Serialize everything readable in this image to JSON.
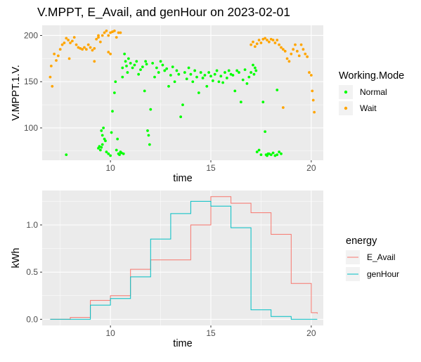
{
  "chart_data": [
    {
      "type": "scatter",
      "title": "V.MPPT, E_Avail, and genHour on 2023-02-01",
      "xlabel": "time",
      "ylabel": "V.MPPT.1.V.",
      "xlim": [
        6.6,
        20.6
      ],
      "ylim": [
        65,
        211
      ],
      "xticks": [
        10,
        15,
        20
      ],
      "yticks": [
        100,
        150,
        200
      ],
      "grid": true,
      "legend": {
        "title": "Working.Mode",
        "position": "right",
        "entries": [
          {
            "label": "Normal",
            "color": "#00ff00"
          },
          {
            "label": "Wait",
            "color": "#ffa500"
          }
        ]
      },
      "series": [
        {
          "name": "Normal",
          "color": "#00ff00",
          "points": [
            [
              7.8,
              71
            ],
            [
              9.4,
              78
            ],
            [
              9.45,
              80
            ],
            [
              9.5,
              76
            ],
            [
              9.55,
              79
            ],
            [
              9.6,
              82
            ],
            [
              9.55,
              97
            ],
            [
              9.65,
              100
            ],
            [
              9.6,
              92
            ],
            [
              9.7,
              88
            ],
            [
              9.75,
              86
            ],
            [
              9.8,
              74
            ],
            [
              9.9,
              72
            ],
            [
              10.0,
              70
            ],
            [
              10.05,
              95
            ],
            [
              10.1,
              118
            ],
            [
              10.2,
              138
            ],
            [
              10.25,
              150
            ],
            [
              10.3,
              76
            ],
            [
              10.35,
              88
            ],
            [
              10.4,
              72
            ],
            [
              10.45,
              71
            ],
            [
              10.5,
              74
            ],
            [
              10.55,
              73
            ],
            [
              10.6,
              155
            ],
            [
              10.6,
              165
            ],
            [
              10.65,
              72
            ],
            [
              10.7,
              180
            ],
            [
              10.75,
              172
            ],
            [
              10.8,
              167
            ],
            [
              10.85,
              160
            ],
            [
              10.9,
              175
            ],
            [
              11.0,
              170
            ],
            [
              11.1,
              165
            ],
            [
              11.2,
              168
            ],
            [
              11.3,
              172
            ],
            [
              11.4,
              158
            ],
            [
              11.5,
              163
            ],
            [
              11.6,
              166
            ],
            [
              11.7,
              140
            ],
            [
              11.75,
              172
            ],
            [
              11.8,
              169
            ],
            [
              11.85,
              97
            ],
            [
              11.9,
              92
            ],
            [
              11.95,
              82
            ],
            [
              12.0,
              120
            ],
            [
              12.1,
              170
            ],
            [
              12.2,
              155
            ],
            [
              12.3,
              165
            ],
            [
              12.4,
              160
            ],
            [
              12.5,
              172
            ],
            [
              12.6,
              168
            ],
            [
              12.7,
              162
            ],
            [
              12.8,
              164
            ],
            [
              12.9,
              145
            ],
            [
              13.0,
              157
            ],
            [
              13.1,
              166
            ],
            [
              13.2,
              150
            ],
            [
              13.3,
              162
            ],
            [
              13.4,
              158
            ],
            [
              13.5,
              112
            ],
            [
              13.6,
              125
            ],
            [
              13.7,
              160
            ],
            [
              13.8,
              153
            ],
            [
              13.9,
              165
            ],
            [
              14.0,
              158
            ],
            [
              14.1,
              150
            ],
            [
              14.2,
              162
            ],
            [
              14.3,
              155
            ],
            [
              14.4,
              138
            ],
            [
              14.5,
              160
            ],
            [
              14.6,
              154
            ],
            [
              14.7,
              157
            ],
            [
              14.8,
              145
            ],
            [
              14.9,
              160
            ],
            [
              15.0,
              156
            ],
            [
              15.1,
              151
            ],
            [
              15.2,
              158
            ],
            [
              15.3,
              162
            ],
            [
              15.4,
              150
            ],
            [
              15.5,
              156
            ],
            [
              15.6,
              149
            ],
            [
              15.7,
              160
            ],
            [
              15.8,
              154
            ],
            [
              15.9,
              162
            ],
            [
              16.0,
              158
            ],
            [
              16.1,
              157
            ],
            [
              16.2,
              140
            ],
            [
              16.3,
              162
            ],
            [
              16.4,
              160
            ],
            [
              16.5,
              128
            ],
            [
              16.6,
              152
            ],
            [
              16.7,
              163
            ],
            [
              16.8,
              148
            ],
            [
              16.9,
              155
            ],
            [
              17.0,
              160
            ],
            [
              17.1,
              168
            ],
            [
              17.15,
              158
            ],
            [
              17.2,
              165
            ],
            [
              17.25,
              162
            ],
            [
              17.3,
              74
            ],
            [
              17.4,
              76
            ],
            [
              17.5,
              71
            ],
            [
              17.6,
              128
            ],
            [
              17.7,
              96
            ],
            [
              17.75,
              71
            ],
            [
              17.8,
              70
            ],
            [
              17.85,
              72
            ],
            [
              17.9,
              72
            ],
            [
              18.0,
              71
            ],
            [
              18.1,
              73
            ],
            [
              18.2,
              70
            ],
            [
              18.3,
              71
            ],
            [
              18.4,
              74
            ],
            [
              18.3,
              141
            ],
            [
              18.5,
              72
            ]
          ]
        },
        {
          "name": "Wait",
          "color": "#ffa500",
          "points": [
            [
              7.0,
              155
            ],
            [
              7.05,
              167
            ],
            [
              7.1,
              145
            ],
            [
              7.2,
              180
            ],
            [
              7.3,
              173
            ],
            [
              7.4,
              178
            ],
            [
              7.5,
              185
            ],
            [
              7.6,
              190
            ],
            [
              7.7,
              192
            ],
            [
              7.8,
              197
            ],
            [
              7.9,
              195
            ],
            [
              8.0,
              192
            ],
            [
              8.1,
              194
            ],
            [
              8.2,
              198
            ],
            [
              8.3,
              190
            ],
            [
              8.4,
              187
            ],
            [
              8.5,
              186
            ],
            [
              8.6,
              185
            ],
            [
              8.7,
              187
            ],
            [
              8.8,
              185
            ],
            [
              8.9,
              190
            ],
            [
              9.0,
              187
            ],
            [
              9.1,
              184
            ],
            [
              9.2,
              186
            ],
            [
              9.3,
              196
            ],
            [
              9.4,
              198
            ],
            [
              9.5,
              193
            ],
            [
              9.6,
              200
            ],
            [
              9.7,
              203
            ],
            [
              9.8,
              205
            ],
            [
              9.9,
              200
            ],
            [
              10.0,
              203
            ],
            [
              10.1,
              204
            ],
            [
              10.2,
              205
            ],
            [
              10.3,
              198
            ],
            [
              10.4,
              203
            ],
            [
              10.5,
              203
            ],
            [
              7.95,
              175
            ],
            [
              9.2,
              172
            ],
            [
              9.4,
              200
            ],
            [
              9.9,
              182
            ],
            [
              10.0,
              180
            ],
            [
              17.0,
              190
            ],
            [
              17.1,
              193
            ],
            [
              17.2,
              188
            ],
            [
              17.3,
              191
            ],
            [
              17.4,
              195
            ],
            [
              17.5,
              192
            ],
            [
              17.6,
              196
            ],
            [
              17.7,
              197
            ],
            [
              17.8,
              195
            ],
            [
              17.9,
              193
            ],
            [
              18.0,
              196
            ],
            [
              18.1,
              195
            ],
            [
              18.2,
              192
            ],
            [
              18.3,
              195
            ],
            [
              18.4,
              190
            ],
            [
              18.5,
              187
            ],
            [
              18.6,
              185
            ],
            [
              18.7,
              183
            ],
            [
              18.8,
              175
            ],
            [
              18.9,
              172
            ],
            [
              19.0,
              180
            ],
            [
              19.1,
              185
            ],
            [
              19.2,
              190
            ],
            [
              19.3,
              183
            ],
            [
              19.4,
              178
            ],
            [
              19.5,
              190
            ],
            [
              19.6,
              185
            ],
            [
              19.7,
              180
            ],
            [
              19.8,
              177
            ],
            [
              19.9,
              160
            ],
            [
              20.0,
              157
            ],
            [
              20.05,
              140
            ],
            [
              20.1,
              130
            ],
            [
              20.15,
              117
            ],
            [
              18.6,
              122
            ]
          ]
        }
      ]
    },
    {
      "type": "line",
      "step": true,
      "xlabel": "time",
      "ylabel": "kWh",
      "xlim": [
        6.6,
        20.6
      ],
      "ylim": [
        -0.065,
        1.365
      ],
      "xticks": [
        10,
        15,
        20
      ],
      "yticks": [
        0.0,
        0.5,
        1.0
      ],
      "ytick_labels": [
        "0.0",
        "0.5",
        "1.0"
      ],
      "grid": true,
      "legend": {
        "title": "energy",
        "position": "right",
        "entries": [
          {
            "label": "E_Avail",
            "color": "#f8766d"
          },
          {
            "label": "genHour",
            "color": "#00bfc4"
          }
        ]
      },
      "series": [
        {
          "name": "E_Avail",
          "color": "#f8766d",
          "x": [
            7,
            8,
            9,
            10,
            11,
            12,
            13,
            14,
            15,
            16,
            17,
            18,
            19,
            20,
            20.3
          ],
          "values": [
            0.0,
            0.02,
            0.2,
            0.25,
            0.53,
            0.63,
            0.63,
            1.0,
            1.3,
            1.23,
            1.13,
            0.9,
            0.38,
            0.07,
            0.06
          ]
        },
        {
          "name": "genHour",
          "color": "#00bfc4",
          "x": [
            7,
            8,
            9,
            10,
            11,
            12,
            13,
            14,
            15,
            16,
            17,
            18,
            19,
            20,
            20.3
          ],
          "values": [
            0.0,
            0.0,
            0.15,
            0.22,
            0.45,
            0.85,
            1.12,
            1.25,
            1.2,
            0.97,
            0.1,
            0.03,
            0.0,
            0.0,
            0.0
          ]
        }
      ]
    }
  ]
}
